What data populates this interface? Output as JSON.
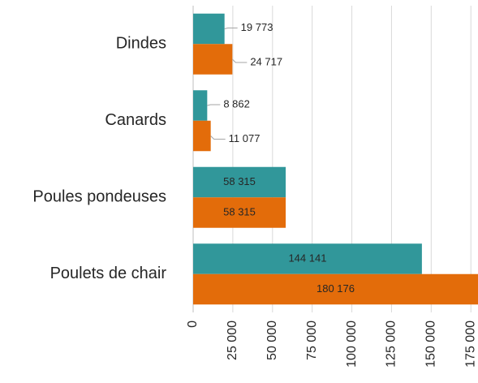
{
  "chart_data": {
    "type": "barh",
    "categories": [
      "Dindes",
      "Canards",
      "Poules pondeuses",
      "Poulets de chair"
    ],
    "series": [
      {
        "color": "#31979a",
        "values": [
          19773,
          8862,
          58315,
          144141
        ],
        "value_labels": [
          "19 773",
          "8 862",
          "58 315",
          "144 141"
        ]
      },
      {
        "color": "#e36c0a",
        "values": [
          24717,
          11077,
          58315,
          180176
        ],
        "value_labels": [
          "24 717",
          "11 077",
          "58 315",
          "180 176"
        ]
      }
    ],
    "xlim": [
      0,
      180000
    ],
    "xticks": [
      0,
      {
        "value": 25000,
        "label": "25 000"
      },
      {
        "value": 50000,
        "label": "50 000"
      },
      {
        "value": 75000,
        "label": "75 000"
      },
      {
        "value": 100000,
        "label": "100 000"
      },
      {
        "value": 125000,
        "label": "125 000"
      },
      {
        "value": 150000,
        "label": "150 000"
      },
      {
        "value": 175000,
        "label": "175 000"
      }
    ],
    "grid": true
  }
}
